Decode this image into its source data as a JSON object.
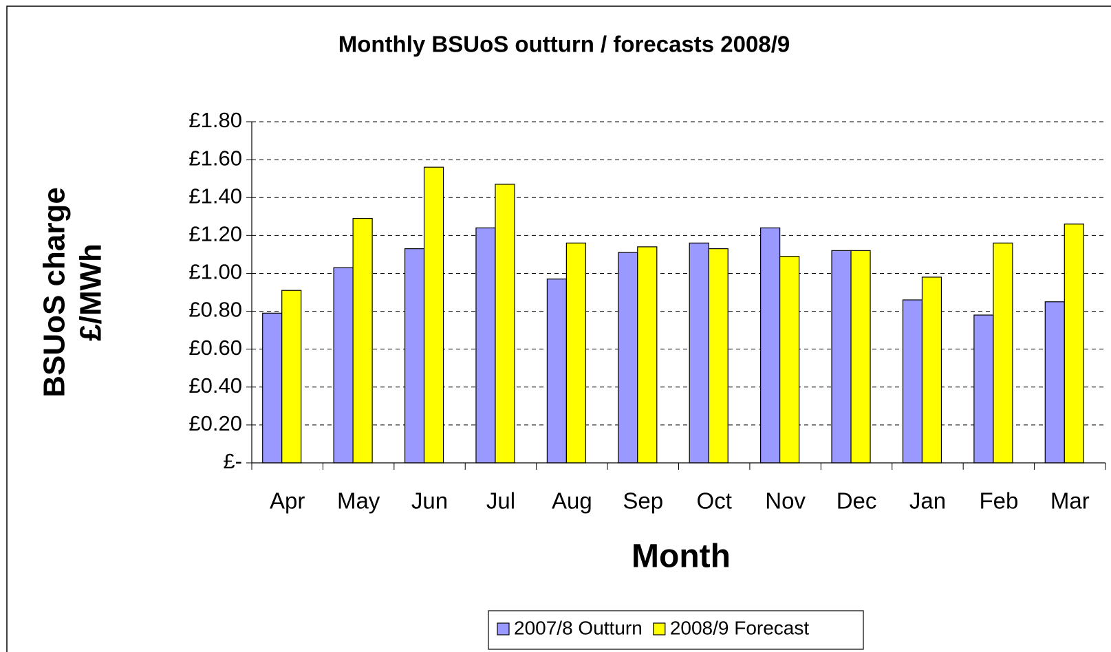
{
  "chart_data": {
    "type": "bar",
    "title": "Monthly BSUoS outturn / forecasts 2008/9",
    "x_label": "Month",
    "y_label": [
      "BSUoS charge",
      "£/MWh"
    ],
    "categories": [
      "Apr",
      "May",
      "Jun",
      "Jul",
      "Aug",
      "Sep",
      "Oct",
      "Nov",
      "Dec",
      "Jan",
      "Feb",
      "Mar"
    ],
    "series": [
      {
        "name": "2007/8 Outturn",
        "color": "#9999ff",
        "values": [
          0.79,
          1.03,
          1.13,
          1.24,
          0.97,
          1.11,
          1.16,
          1.24,
          1.12,
          0.86,
          0.78,
          0.85
        ]
      },
      {
        "name": "2008/9 Forecast",
        "color": "#ffff00",
        "values": [
          0.91,
          1.29,
          1.56,
          1.47,
          1.16,
          1.14,
          1.13,
          1.09,
          1.12,
          0.98,
          1.16,
          1.26
        ]
      }
    ],
    "ylim": [
      0,
      1.8
    ],
    "yticks": [
      {
        "value": 0,
        "label": "£-"
      },
      {
        "value": 0.2,
        "label": "£0.20"
      },
      {
        "value": 0.4,
        "label": "£0.40"
      },
      {
        "value": 0.6,
        "label": "£0.60"
      },
      {
        "value": 0.8,
        "label": "£0.80"
      },
      {
        "value": 1.0,
        "label": "£1.00"
      },
      {
        "value": 1.2,
        "label": "£1.20"
      },
      {
        "value": 1.4,
        "label": "£1.40"
      },
      {
        "value": 1.6,
        "label": "£1.60"
      },
      {
        "value": 1.8,
        "label": "£1.80"
      }
    ],
    "grid": true,
    "legend": "bottom"
  }
}
